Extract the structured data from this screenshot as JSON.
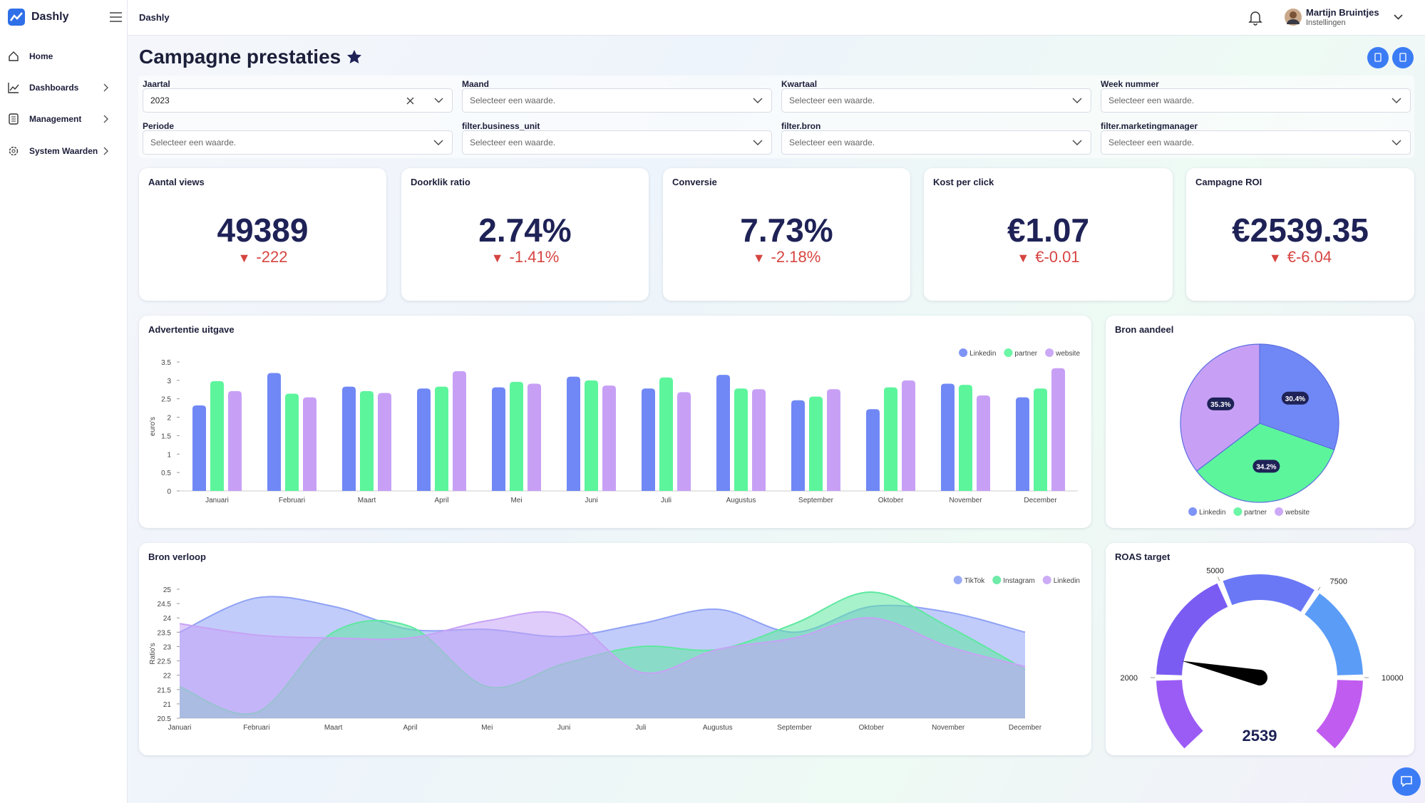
{
  "sidebar": {
    "brand": "Dashly",
    "nav": [
      "Home",
      "Dashboards",
      "Management",
      "System Waarden"
    ]
  },
  "header": {
    "title": "Dashly",
    "user": "Martijn Bruintjes",
    "user_subtitle": "Instellingen"
  },
  "page": {
    "title": "Campagne prestaties"
  },
  "filters": [
    {
      "label": "Jaartal",
      "value": "2023"
    },
    {
      "label": "Maand",
      "placeholder": "Selecteer een waarde."
    },
    {
      "label": "Kwartaal",
      "placeholder": "Selecteer een waarde."
    },
    {
      "label": "Week nummer",
      "placeholder": "Selecteer een waarde."
    },
    {
      "label": "Periode",
      "placeholder": "Selecteer een waarde."
    },
    {
      "label": "filter.business_unit",
      "placeholder": "Selecteer een waarde."
    },
    {
      "label": "filter.bron",
      "placeholder": "Selecteer een waarde."
    },
    {
      "label": "filter.marketingmanager",
      "placeholder": "Selecteer een waarde."
    }
  ],
  "kpis": [
    {
      "title": "Aantal views",
      "value": "49389",
      "delta": "-222"
    },
    {
      "title": "Doorklik ratio",
      "value": "2.74%",
      "delta": "-1.41%"
    },
    {
      "title": "Conversie",
      "value": "7.73%",
      "delta": "-2.18%"
    },
    {
      "title": "Kost per click",
      "value": "€1.07",
      "delta": "€-0.01"
    },
    {
      "title": "Campagne ROI",
      "value": "€2539.35",
      "delta": "€-6.04"
    }
  ],
  "chart_data": [
    {
      "type": "bar",
      "title": "Advertentie uitgave",
      "y_label": "euro's",
      "categories": [
        "Januari",
        "Februari",
        "Maart",
        "April",
        "Mei",
        "Juni",
        "Juli",
        "Augustus",
        "September",
        "Oktober",
        "November",
        "December"
      ],
      "series": [
        {
          "name": "Linkedin",
          "color": "#7088f5",
          "values": [
            2.32,
            3.2,
            2.83,
            2.78,
            2.81,
            3.1,
            2.78,
            3.15,
            2.46,
            2.22,
            2.91,
            2.54
          ]
        },
        {
          "name": "partner",
          "color": "#5cf59c",
          "values": [
            2.98,
            2.64,
            2.71,
            2.83,
            2.96,
            3.0,
            3.08,
            2.78,
            2.56,
            2.81,
            2.88,
            2.78
          ]
        },
        {
          "name": "website",
          "color": "#c7a0f6",
          "values": [
            2.71,
            2.54,
            2.66,
            3.25,
            2.91,
            2.86,
            2.68,
            2.76,
            2.76,
            3.0,
            2.59,
            3.33
          ]
        }
      ],
      "ylim": [
        0,
        3.5
      ],
      "yticks": [
        0,
        0.5,
        1,
        1.5,
        2,
        2.5,
        3,
        3.5
      ],
      "legend": "top-right"
    },
    {
      "type": "pie",
      "title": "Bron aandeel",
      "categories": [
        "Linkedin",
        "partner",
        "website"
      ],
      "colors": [
        "#7088f5",
        "#5cf59c",
        "#c7a0f6"
      ],
      "values": [
        30.4,
        34.2,
        35.3
      ],
      "value_labels": [
        "30.4%",
        "34.2%",
        "35.3%"
      ],
      "legend": "bottom"
    },
    {
      "type": "area",
      "title": "Bron verloop",
      "y_label": "Ratio's",
      "categories": [
        "Januari",
        "Februari",
        "Maart",
        "April",
        "Mei",
        "Juni",
        "Juli",
        "Augustus",
        "September",
        "Oktober",
        "November",
        "December"
      ],
      "series": [
        {
          "name": "TikTok",
          "color": "#8fa2f5",
          "values": [
            23.5,
            24.7,
            24.4,
            23.6,
            23.6,
            23.35,
            23.8,
            24.3,
            23.5,
            24.4,
            24.2,
            23.5
          ]
        },
        {
          "name": "Instagram",
          "color": "#5fe8a0",
          "values": [
            21.6,
            20.7,
            23.5,
            23.7,
            21.6,
            22.4,
            23.0,
            22.9,
            23.8,
            24.9,
            23.7,
            22.2
          ]
        },
        {
          "name": "Linkedin",
          "color": "#c6a3f5",
          "values": [
            23.8,
            23.4,
            23.3,
            23.3,
            23.9,
            24.1,
            22.1,
            22.9,
            23.3,
            24.0,
            23.0,
            22.3
          ]
        }
      ],
      "ylim": [
        20.5,
        25
      ],
      "yticks": [
        20.5,
        21,
        21.5,
        22,
        22.5,
        23,
        23.5,
        24,
        24.5,
        25
      ],
      "legend": "top-right"
    },
    {
      "type": "gauge",
      "title": "ROAS target",
      "range": [
        0,
        12000
      ],
      "ticks": [
        2000,
        5000,
        7500,
        10000
      ],
      "value": 2539,
      "band_colors": [
        "#9b5cf6",
        "#7b5cf3",
        "#6a78f6",
        "#5b9cf7",
        "#c05cf0"
      ]
    }
  ]
}
